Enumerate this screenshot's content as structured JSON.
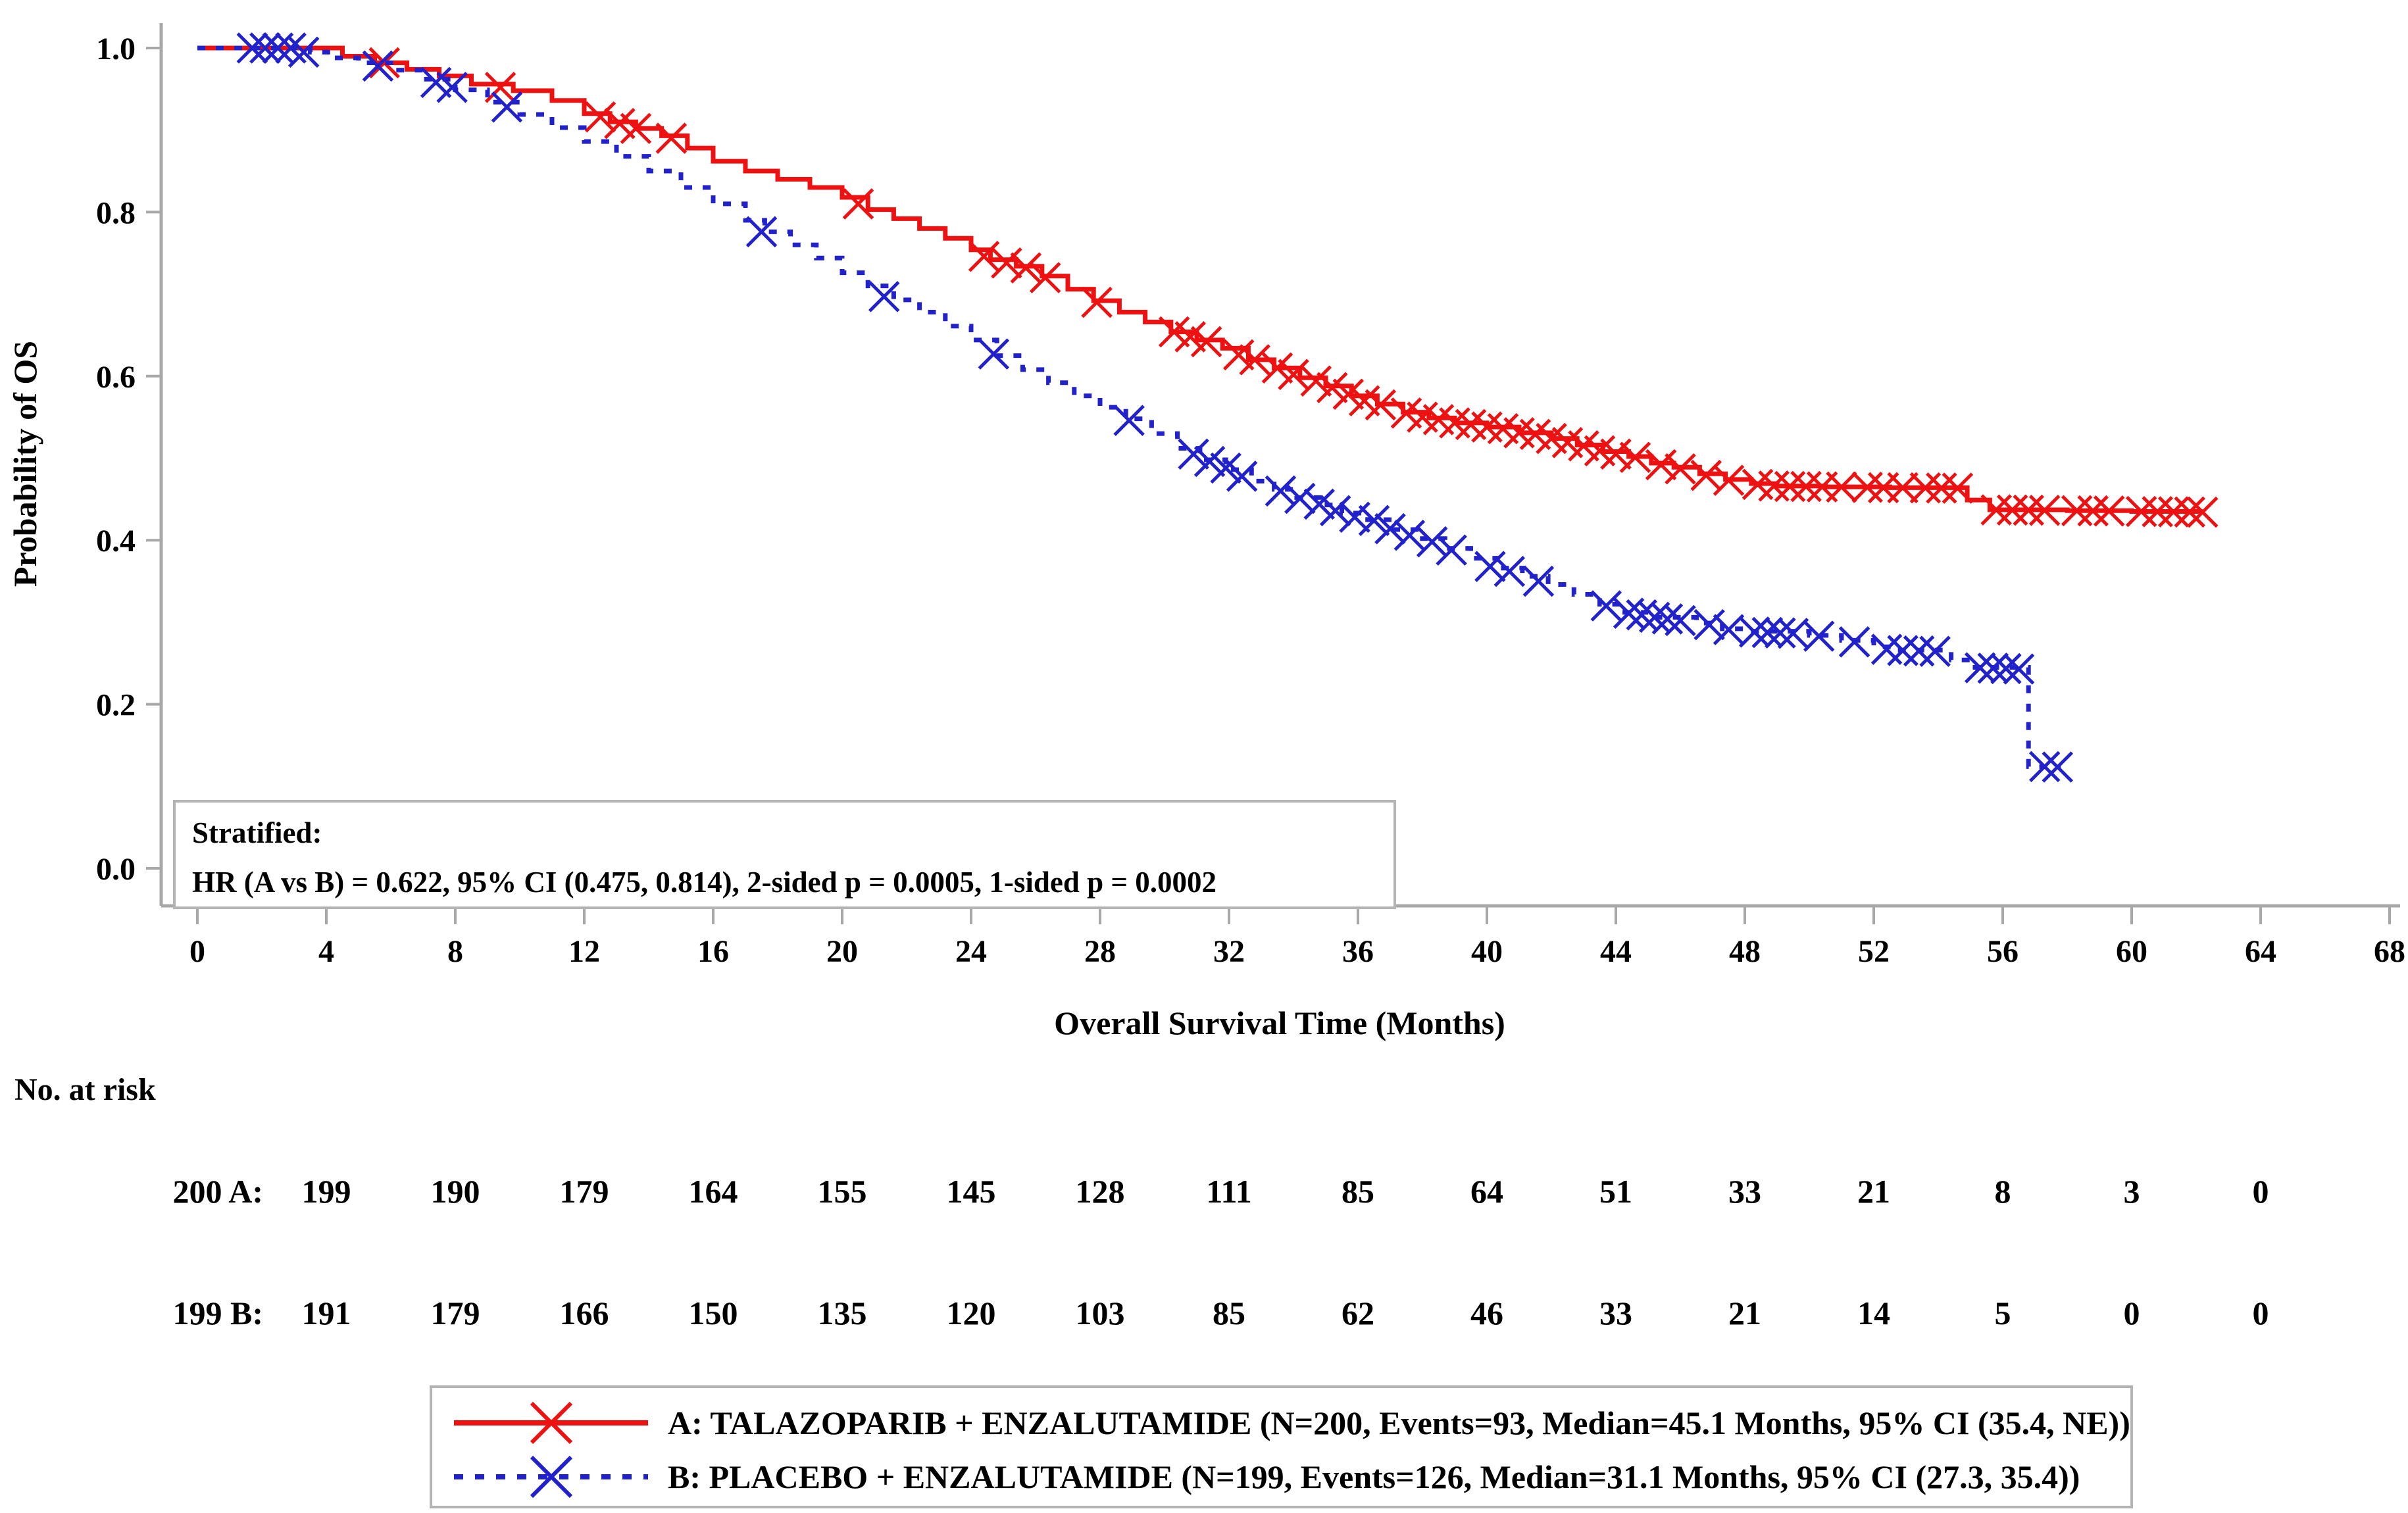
{
  "figure": {
    "background": "#ffffff",
    "axis_color": "#a8a8a8",
    "box_border_color": "#b4b4b4",
    "text_color": "#000000",
    "series_a_color": "#ee1111",
    "series_b_color": "#2222cc"
  },
  "chart_data": {
    "type": "line",
    "subtype": "kaplan-meier-step",
    "title": "",
    "xlabel": "Overall Survival Time (Months)",
    "ylabel": "Probability of OS",
    "xlim": [
      0,
      68
    ],
    "xticks": [
      0,
      4,
      8,
      12,
      16,
      20,
      24,
      28,
      32,
      36,
      40,
      44,
      48,
      52,
      56,
      60,
      64,
      68
    ],
    "ylim": [
      0.0,
      1.0
    ],
    "yticks": [
      0.0,
      0.2,
      0.4,
      0.6,
      0.8,
      1.0
    ],
    "grid": false,
    "legend_position": "bottom",
    "annotation": {
      "line1": "Stratified:",
      "line2": "HR (A vs B) = 0.622, 95% CI (0.475, 0.814), 2-sided p = 0.0005, 1-sided p = 0.0002"
    },
    "series": [
      {
        "name": "A: TALAZOPARIB + ENZALUTAMIDE (N=200, Events=93, Median=45.1 Months, 95% CI (35.4, NE))",
        "color": "#ee1111",
        "style": "solid",
        "marker": "x",
        "end": 62.2,
        "steps": [
          [
            0,
            1.0
          ],
          [
            4.5,
            0.99
          ],
          [
            5.5,
            0.982
          ],
          [
            6.5,
            0.974
          ],
          [
            7.5,
            0.966
          ],
          [
            8.5,
            0.956
          ],
          [
            9.8,
            0.948
          ],
          [
            11,
            0.936
          ],
          [
            12,
            0.92
          ],
          [
            12.8,
            0.91
          ],
          [
            13.6,
            0.902
          ],
          [
            14.4,
            0.893
          ],
          [
            15.2,
            0.878
          ],
          [
            16,
            0.862
          ],
          [
            17,
            0.85
          ],
          [
            18,
            0.84
          ],
          [
            19,
            0.83
          ],
          [
            20,
            0.818
          ],
          [
            20.8,
            0.803
          ],
          [
            21.6,
            0.792
          ],
          [
            22.4,
            0.78
          ],
          [
            23.2,
            0.768
          ],
          [
            24,
            0.754
          ],
          [
            24.6,
            0.742
          ],
          [
            25.4,
            0.734
          ],
          [
            26.2,
            0.722
          ],
          [
            27,
            0.706
          ],
          [
            27.8,
            0.692
          ],
          [
            28.6,
            0.678
          ],
          [
            29.4,
            0.666
          ],
          [
            30.2,
            0.654
          ],
          [
            31,
            0.644
          ],
          [
            31.8,
            0.634
          ],
          [
            32.6,
            0.62
          ],
          [
            33.4,
            0.61
          ],
          [
            34.2,
            0.598
          ],
          [
            35,
            0.588
          ],
          [
            35.8,
            0.576
          ],
          [
            36.6,
            0.566
          ],
          [
            37.4,
            0.556
          ],
          [
            38.2,
            0.549
          ],
          [
            39,
            0.543
          ],
          [
            40,
            0.538
          ],
          [
            41,
            0.531
          ],
          [
            42,
            0.524
          ],
          [
            42.8,
            0.516
          ],
          [
            43.6,
            0.508
          ],
          [
            44.4,
            0.502
          ],
          [
            45.1,
            0.494
          ],
          [
            45.8,
            0.489
          ],
          [
            46.6,
            0.481
          ],
          [
            47.4,
            0.474
          ],
          [
            48.2,
            0.469
          ],
          [
            49,
            0.466
          ],
          [
            50.5,
            0.465
          ],
          [
            52.5,
            0.464
          ],
          [
            54.9,
            0.449
          ],
          [
            55.6,
            0.437
          ],
          [
            58,
            0.436
          ],
          [
            60,
            0.435
          ]
        ],
        "censors": [
          [
            5.8,
            0.982
          ],
          [
            9.4,
            0.952
          ],
          [
            12.5,
            0.916
          ],
          [
            13.1,
            0.908
          ],
          [
            13.6,
            0.902
          ],
          [
            14.7,
            0.89
          ],
          [
            20.5,
            0.81
          ],
          [
            24.4,
            0.746
          ],
          [
            25.1,
            0.738
          ],
          [
            25.7,
            0.732
          ],
          [
            26.3,
            0.72
          ],
          [
            27.9,
            0.69
          ],
          [
            30.3,
            0.654
          ],
          [
            30.8,
            0.648
          ],
          [
            31.3,
            0.642
          ],
          [
            32.3,
            0.626
          ],
          [
            32.8,
            0.62
          ],
          [
            33.5,
            0.61
          ],
          [
            34.0,
            0.602
          ],
          [
            34.7,
            0.594
          ],
          [
            35.2,
            0.586
          ],
          [
            35.7,
            0.578
          ],
          [
            36.2,
            0.57
          ],
          [
            36.7,
            0.565
          ],
          [
            37.5,
            0.555
          ],
          [
            38.0,
            0.55
          ],
          [
            38.5,
            0.547
          ],
          [
            39.0,
            0.543
          ],
          [
            39.5,
            0.541
          ],
          [
            40.0,
            0.538
          ],
          [
            40.5,
            0.536
          ],
          [
            41.0,
            0.531
          ],
          [
            41.5,
            0.529
          ],
          [
            42.0,
            0.524
          ],
          [
            42.5,
            0.519
          ],
          [
            43.0,
            0.515
          ],
          [
            43.5,
            0.509
          ],
          [
            44.0,
            0.505
          ],
          [
            44.6,
            0.501
          ],
          [
            45.4,
            0.492
          ],
          [
            46.0,
            0.487
          ],
          [
            46.8,
            0.479
          ],
          [
            47.5,
            0.473
          ],
          [
            48.4,
            0.468
          ],
          [
            48.9,
            0.466
          ],
          [
            49.4,
            0.4655
          ],
          [
            49.9,
            0.4655
          ],
          [
            50.4,
            0.465
          ],
          [
            51.0,
            0.4648
          ],
          [
            51.8,
            0.4645
          ],
          [
            52.3,
            0.464
          ],
          [
            52.9,
            0.464
          ],
          [
            53.6,
            0.4638
          ],
          [
            54.1,
            0.4636
          ],
          [
            54.6,
            0.4634
          ],
          [
            55.8,
            0.437
          ],
          [
            56.3,
            0.4368
          ],
          [
            56.8,
            0.4366
          ],
          [
            57.3,
            0.4364
          ],
          [
            58.3,
            0.436
          ],
          [
            58.8,
            0.4358
          ],
          [
            59.3,
            0.4356
          ],
          [
            60.3,
            0.435
          ],
          [
            60.8,
            0.4348
          ],
          [
            61.3,
            0.4346
          ],
          [
            61.8,
            0.4344
          ],
          [
            62.2,
            0.4342
          ]
        ]
      },
      {
        "name": "B: PLACEBO + ENZALUTAMIDE (N=199, Events=126, Median=31.1 Months, 95% CI (27.3, 35.4))",
        "color": "#2222cc",
        "style": "dashed",
        "marker": "x",
        "end": 57.8,
        "steps": [
          [
            0,
            1.0
          ],
          [
            3.5,
            0.995
          ],
          [
            4.2,
            0.988
          ],
          [
            5,
            0.982
          ],
          [
            6,
            0.973
          ],
          [
            7,
            0.962
          ],
          [
            8,
            0.949
          ],
          [
            9,
            0.934
          ],
          [
            10,
            0.919
          ],
          [
            11,
            0.903
          ],
          [
            12,
            0.886
          ],
          [
            13,
            0.868
          ],
          [
            14,
            0.85
          ],
          [
            15,
            0.83
          ],
          [
            16,
            0.81
          ],
          [
            17,
            0.79
          ],
          [
            17.6,
            0.776
          ],
          [
            18.4,
            0.76
          ],
          [
            19.2,
            0.744
          ],
          [
            20,
            0.726
          ],
          [
            20.8,
            0.71
          ],
          [
            21.6,
            0.693
          ],
          [
            22.4,
            0.678
          ],
          [
            23.2,
            0.661
          ],
          [
            24,
            0.644
          ],
          [
            24.8,
            0.625
          ],
          [
            25.6,
            0.608
          ],
          [
            26.4,
            0.592
          ],
          [
            27.2,
            0.576
          ],
          [
            28,
            0.562
          ],
          [
            28.8,
            0.548
          ],
          [
            29.6,
            0.53
          ],
          [
            30.4,
            0.512
          ],
          [
            31.1,
            0.498
          ],
          [
            31.9,
            0.486
          ],
          [
            32.7,
            0.472
          ],
          [
            33.4,
            0.462
          ],
          [
            34.1,
            0.452
          ],
          [
            34.8,
            0.443
          ],
          [
            35.5,
            0.433
          ],
          [
            36.3,
            0.425
          ],
          [
            37.1,
            0.413
          ],
          [
            37.9,
            0.402
          ],
          [
            38.7,
            0.39
          ],
          [
            39.5,
            0.378
          ],
          [
            40.3,
            0.366
          ],
          [
            41.1,
            0.356
          ],
          [
            41.9,
            0.346
          ],
          [
            42.7,
            0.334
          ],
          [
            43.5,
            0.322
          ],
          [
            44.2,
            0.312
          ],
          [
            45,
            0.306
          ],
          [
            46.5,
            0.299
          ],
          [
            47.3,
            0.292
          ],
          [
            48,
            0.289
          ],
          [
            50,
            0.284
          ],
          [
            51,
            0.278
          ],
          [
            52,
            0.27
          ],
          [
            52.6,
            0.266
          ],
          [
            54.4,
            0.254
          ],
          [
            55,
            0.245
          ],
          [
            56.8,
            0.124
          ]
        ],
        "censors": [
          [
            1.7,
            1.0
          ],
          [
            2.1,
            1.0
          ],
          [
            2.5,
            1.0
          ],
          [
            2.9,
            1.0
          ],
          [
            3.3,
            0.995
          ],
          [
            5.6,
            0.978
          ],
          [
            7.4,
            0.958
          ],
          [
            7.9,
            0.952
          ],
          [
            9.6,
            0.928
          ],
          [
            17.5,
            0.776
          ],
          [
            21.3,
            0.697
          ],
          [
            24.7,
            0.627
          ],
          [
            28.9,
            0.546
          ],
          [
            30.9,
            0.505
          ],
          [
            31.4,
            0.496
          ],
          [
            31.9,
            0.488
          ],
          [
            32.4,
            0.478
          ],
          [
            33.6,
            0.46
          ],
          [
            34.2,
            0.451
          ],
          [
            34.8,
            0.444
          ],
          [
            35.3,
            0.436
          ],
          [
            35.9,
            0.428
          ],
          [
            36.5,
            0.424
          ],
          [
            37.0,
            0.414
          ],
          [
            37.6,
            0.406
          ],
          [
            38.3,
            0.398
          ],
          [
            38.9,
            0.388
          ],
          [
            40.1,
            0.368
          ],
          [
            40.7,
            0.362
          ],
          [
            41.6,
            0.35
          ],
          [
            43.7,
            0.32
          ],
          [
            44.4,
            0.311
          ],
          [
            44.8,
            0.309
          ],
          [
            45.2,
            0.306
          ],
          [
            45.6,
            0.304
          ],
          [
            46.0,
            0.302
          ],
          [
            46.9,
            0.297
          ],
          [
            47.5,
            0.291
          ],
          [
            48.3,
            0.288
          ],
          [
            48.7,
            0.2875
          ],
          [
            49.1,
            0.287
          ],
          [
            49.5,
            0.2865
          ],
          [
            50.3,
            0.283
          ],
          [
            51.4,
            0.276
          ],
          [
            52.4,
            0.267
          ],
          [
            52.9,
            0.2655
          ],
          [
            53.4,
            0.265
          ],
          [
            53.9,
            0.2645
          ],
          [
            55.3,
            0.2445
          ],
          [
            55.7,
            0.244
          ],
          [
            56.1,
            0.2435
          ],
          [
            56.5,
            0.243
          ],
          [
            57.3,
            0.124
          ],
          [
            57.7,
            0.1235
          ]
        ]
      }
    ],
    "risk_table": {
      "title": "No. at risk",
      "times": [
        0,
        4,
        8,
        12,
        16,
        20,
        24,
        28,
        32,
        36,
        40,
        44,
        48,
        52,
        56,
        60,
        64
      ],
      "rows": [
        {
          "label": "A:",
          "counts": [
            200,
            199,
            190,
            179,
            164,
            155,
            145,
            128,
            111,
            85,
            64,
            51,
            33,
            21,
            8,
            3,
            0
          ]
        },
        {
          "label": "B:",
          "counts": [
            199,
            191,
            179,
            166,
            150,
            135,
            120,
            103,
            85,
            62,
            46,
            33,
            21,
            14,
            5,
            0,
            0
          ]
        }
      ]
    }
  }
}
